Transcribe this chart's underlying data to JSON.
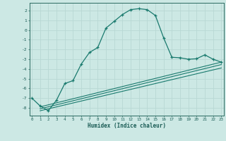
{
  "main_x": [
    0,
    1,
    2,
    3,
    4,
    5,
    6,
    7,
    8,
    9,
    10,
    11,
    12,
    13,
    14,
    15,
    16,
    17,
    18,
    19,
    20,
    21,
    22,
    23
  ],
  "main_y": [
    -7.0,
    -7.8,
    -8.3,
    -7.2,
    -5.5,
    -5.2,
    -3.5,
    -2.3,
    -1.8,
    0.2,
    0.9,
    1.6,
    2.1,
    2.2,
    2.1,
    1.5,
    -0.8,
    -2.8,
    -2.85,
    -3.0,
    -2.95,
    -2.55,
    -3.0,
    -3.3
  ],
  "line1_x": [
    1,
    23
  ],
  "line1_y": [
    -7.9,
    -3.3
  ],
  "line2_x": [
    1,
    23
  ],
  "line2_y": [
    -8.1,
    -3.55
  ],
  "line3_x": [
    1,
    23
  ],
  "line3_y": [
    -8.3,
    -3.9
  ],
  "bg_color": "#cce8e4",
  "line_color": "#1a7a6e",
  "grid_color": "#b8d8d4",
  "xlabel": "Humidex (Indice chaleur)",
  "xlim": [
    -0.3,
    23.3
  ],
  "ylim": [
    -8.8,
    2.8
  ],
  "yticks": [
    2,
    1,
    0,
    -1,
    -2,
    -3,
    -4,
    -5,
    -6,
    -7,
    -8
  ],
  "xticks": [
    0,
    1,
    2,
    3,
    4,
    5,
    6,
    7,
    8,
    9,
    10,
    11,
    12,
    13,
    14,
    15,
    16,
    17,
    18,
    19,
    20,
    21,
    22,
    23
  ]
}
